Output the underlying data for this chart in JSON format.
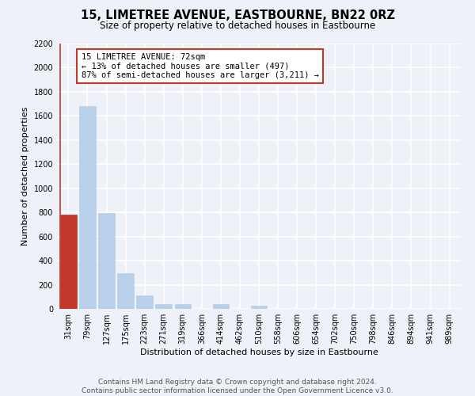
{
  "title": "15, LIMETREE AVENUE, EASTBOURNE, BN22 0RZ",
  "subtitle": "Size of property relative to detached houses in Eastbourne",
  "xlabel": "Distribution of detached houses by size in Eastbourne",
  "ylabel": "Number of detached properties",
  "categories": [
    "31sqm",
    "79sqm",
    "127sqm",
    "175sqm",
    "223sqm",
    "271sqm",
    "319sqm",
    "366sqm",
    "414sqm",
    "462sqm",
    "510sqm",
    "558sqm",
    "606sqm",
    "654sqm",
    "702sqm",
    "750sqm",
    "798sqm",
    "846sqm",
    "894sqm",
    "941sqm",
    "989sqm"
  ],
  "values": [
    780,
    1680,
    795,
    295,
    110,
    38,
    38,
    0,
    38,
    0,
    25,
    0,
    0,
    0,
    0,
    0,
    0,
    0,
    0,
    0,
    0
  ],
  "bar_color_normal": "#b8d0ea",
  "bar_color_highlight": "#c0392b",
  "highlight_index": 0,
  "annotation_title": "15 LIMETREE AVENUE: 72sqm",
  "annotation_line1": "← 13% of detached houses are smaller (497)",
  "annotation_line2": "87% of semi-detached houses are larger (3,211) →",
  "annotation_box_facecolor": "#ffffff",
  "annotation_box_edgecolor": "#c0392b",
  "ylim": [
    0,
    2200
  ],
  "yticks": [
    0,
    200,
    400,
    600,
    800,
    1000,
    1200,
    1400,
    1600,
    1800,
    2000,
    2200
  ],
  "footer1": "Contains HM Land Registry data © Crown copyright and database right 2024.",
  "footer2": "Contains public sector information licensed under the Open Government Licence v3.0.",
  "bg_color": "#eef2f8",
  "grid_color": "#ffffff",
  "title_fontsize": 10.5,
  "subtitle_fontsize": 8.5,
  "axis_label_fontsize": 8,
  "tick_fontsize": 7,
  "annotation_fontsize": 7.5,
  "footer_fontsize": 6.5
}
